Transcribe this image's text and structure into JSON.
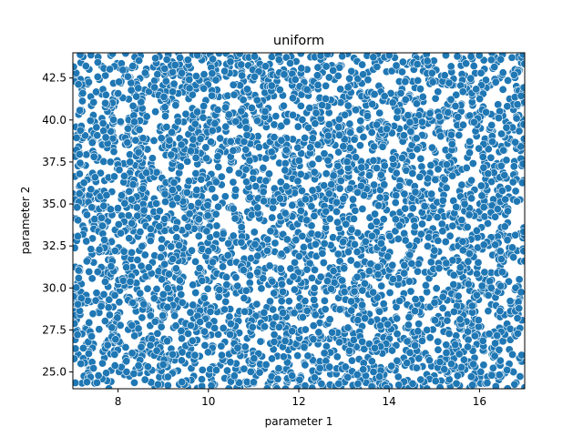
{
  "chart_data": {
    "type": "scatter",
    "title": "uniform",
    "xlabel": "parameter 1",
    "ylabel": "parameter 2",
    "xlim": [
      7.0,
      17.0
    ],
    "ylim": [
      24.0,
      44.0
    ],
    "xticks": [
      8,
      10,
      12,
      14,
      16
    ],
    "xtick_labels": [
      "8",
      "10",
      "12",
      "14",
      "16"
    ],
    "yticks": [
      25.0,
      27.5,
      30.0,
      32.5,
      35.0,
      37.5,
      40.0,
      42.5
    ],
    "ytick_labels": [
      "25.0",
      "27.5",
      "30.0",
      "32.5",
      "35.0",
      "37.5",
      "40.0",
      "42.5"
    ],
    "grid": false,
    "legend": "none",
    "colors": {
      "point_fill": "#1f77b4",
      "point_edge": "#ffffff"
    },
    "distribution": {
      "kind": "uniform",
      "x_range": [
        7.0,
        17.0
      ],
      "y_range": [
        24.0,
        44.0
      ],
      "n_points": 4000,
      "seed": 12345
    }
  }
}
